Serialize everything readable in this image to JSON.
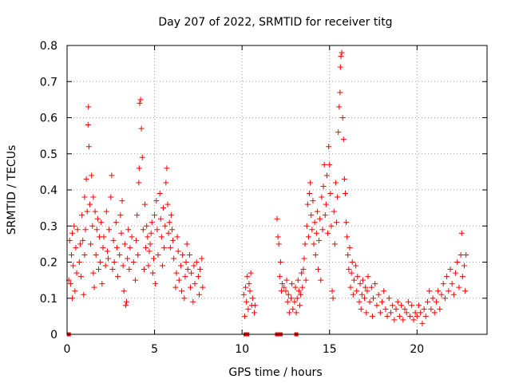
{
  "chart_data": {
    "type": "scatter",
    "title": "Day 207 of 2022, SRMTID for receiver titg",
    "xlabel": "GPS time / hours",
    "ylabel": "SRMTID / TECUs",
    "xlim": [
      0,
      24
    ],
    "ylim": [
      0,
      0.8
    ],
    "x_ticks": [
      0,
      5,
      10,
      15,
      20
    ],
    "y_ticks": [
      0,
      0.1,
      0.2,
      0.3,
      0.4,
      0.5,
      0.6,
      0.7,
      0.8
    ],
    "x_tick_labels": [
      "0",
      "5",
      "10",
      "15",
      "20"
    ],
    "y_tick_labels": [
      "0",
      "0.1",
      "0.2",
      "0.3",
      "0.4",
      "0.5",
      "0.6",
      "0.7",
      "0.8"
    ],
    "grid": true,
    "marker": "+",
    "color": "#ff0000",
    "zero_points_x": [
      0.1,
      10.2,
      10.3,
      12.0,
      12.1,
      12.2,
      13.1
    ],
    "points": [
      [
        0.1,
        0.15
      ],
      [
        0.15,
        0.26
      ],
      [
        0.2,
        0.14
      ],
      [
        0.25,
        0.22
      ],
      [
        0.3,
        0.1
      ],
      [
        0.3,
        0.28
      ],
      [
        0.35,
        0.19
      ],
      [
        0.4,
        0.3
      ],
      [
        0.45,
        0.12
      ],
      [
        0.5,
        0.24
      ],
      [
        0.55,
        0.17
      ],
      [
        0.6,
        0.29
      ],
      [
        0.7,
        0.2
      ],
      [
        0.75,
        0.25
      ],
      [
        0.8,
        0.16
      ],
      [
        0.85,
        0.33
      ],
      [
        0.9,
        0.26
      ],
      [
        0.95,
        0.11
      ],
      [
        1.0,
        0.38
      ],
      [
        1.0,
        0.22
      ],
      [
        1.05,
        0.29
      ],
      [
        1.1,
        0.43
      ],
      [
        1.15,
        0.34
      ],
      [
        1.2,
        0.58
      ],
      [
        1.22,
        0.63
      ],
      [
        1.25,
        0.52
      ],
      [
        1.3,
        0.36
      ],
      [
        1.35,
        0.25
      ],
      [
        1.4,
        0.44
      ],
      [
        1.45,
        0.3
      ],
      [
        1.5,
        0.17
      ],
      [
        1.5,
        0.38
      ],
      [
        1.55,
        0.13
      ],
      [
        1.6,
        0.34
      ],
      [
        1.65,
        0.22
      ],
      [
        1.7,
        0.29
      ],
      [
        1.75,
        0.32
      ],
      [
        1.8,
        0.18
      ],
      [
        1.85,
        0.27
      ],
      [
        1.9,
        0.2
      ],
      [
        1.95,
        0.31
      ],
      [
        2.0,
        0.14
      ],
      [
        2.05,
        0.24
      ],
      [
        2.1,
        0.27
      ],
      [
        2.2,
        0.19
      ],
      [
        2.25,
        0.34
      ],
      [
        2.3,
        0.23
      ],
      [
        2.35,
        0.21
      ],
      [
        2.4,
        0.29
      ],
      [
        2.5,
        0.38
      ],
      [
        2.55,
        0.44
      ],
      [
        2.6,
        0.18
      ],
      [
        2.65,
        0.26
      ],
      [
        2.7,
        0.2
      ],
      [
        2.8,
        0.31
      ],
      [
        2.85,
        0.24
      ],
      [
        2.9,
        0.16
      ],
      [
        3.0,
        0.22
      ],
      [
        3.05,
        0.33
      ],
      [
        3.1,
        0.28
      ],
      [
        3.15,
        0.37
      ],
      [
        3.2,
        0.19
      ],
      [
        3.25,
        0.12
      ],
      [
        3.3,
        0.25
      ],
      [
        3.35,
        0.08
      ],
      [
        3.4,
        0.09
      ],
      [
        3.45,
        0.21
      ],
      [
        3.5,
        0.29
      ],
      [
        3.55,
        0.18
      ],
      [
        3.6,
        0.24
      ],
      [
        3.7,
        0.27
      ],
      [
        3.8,
        0.2
      ],
      [
        3.9,
        0.15
      ],
      [
        3.95,
        0.26
      ],
      [
        4.0,
        0.33
      ],
      [
        4.05,
        0.22
      ],
      [
        4.1,
        0.42
      ],
      [
        4.12,
        0.46
      ],
      [
        4.15,
        0.64
      ],
      [
        4.2,
        0.65
      ],
      [
        4.25,
        0.57
      ],
      [
        4.3,
        0.49
      ],
      [
        4.35,
        0.29
      ],
      [
        4.4,
        0.18
      ],
      [
        4.45,
        0.36
      ],
      [
        4.5,
        0.24
      ],
      [
        4.55,
        0.3
      ],
      [
        4.6,
        0.27
      ],
      [
        4.65,
        0.19
      ],
      [
        4.7,
        0.23
      ],
      [
        4.75,
        0.25
      ],
      [
        4.8,
        0.28
      ],
      [
        4.85,
        0.31
      ],
      [
        4.9,
        0.17
      ],
      [
        4.95,
        0.21
      ],
      [
        5.0,
        0.33
      ],
      [
        5.05,
        0.14
      ],
      [
        5.1,
        0.37
      ],
      [
        5.15,
        0.29
      ],
      [
        5.2,
        0.22
      ],
      [
        5.3,
        0.39
      ],
      [
        5.35,
        0.32
      ],
      [
        5.4,
        0.27
      ],
      [
        5.45,
        0.19
      ],
      [
        5.5,
        0.35
      ],
      [
        5.55,
        0.24
      ],
      [
        5.6,
        0.3
      ],
      [
        5.65,
        0.42
      ],
      [
        5.7,
        0.46
      ],
      [
        5.75,
        0.36
      ],
      [
        5.8,
        0.28
      ],
      [
        5.85,
        0.31
      ],
      [
        5.9,
        0.24
      ],
      [
        5.95,
        0.33
      ],
      [
        6.0,
        0.29
      ],
      [
        6.05,
        0.26
      ],
      [
        6.1,
        0.21
      ],
      [
        6.2,
        0.13
      ],
      [
        6.25,
        0.17
      ],
      [
        6.3,
        0.27
      ],
      [
        6.35,
        0.23
      ],
      [
        6.4,
        0.15
      ],
      [
        6.5,
        0.19
      ],
      [
        6.55,
        0.12
      ],
      [
        6.6,
        0.22
      ],
      [
        6.7,
        0.1
      ],
      [
        6.75,
        0.16
      ],
      [
        6.8,
        0.2
      ],
      [
        6.85,
        0.25
      ],
      [
        6.9,
        0.18
      ],
      [
        7.0,
        0.22
      ],
      [
        7.05,
        0.13
      ],
      [
        7.1,
        0.17
      ],
      [
        7.2,
        0.09
      ],
      [
        7.25,
        0.19
      ],
      [
        7.3,
        0.14
      ],
      [
        7.4,
        0.2
      ],
      [
        7.5,
        0.16
      ],
      [
        7.55,
        0.11
      ],
      [
        7.6,
        0.18
      ],
      [
        7.7,
        0.21
      ],
      [
        7.75,
        0.13
      ],
      [
        10.1,
        0.11
      ],
      [
        10.15,
        0.05
      ],
      [
        10.2,
        0.13
      ],
      [
        10.25,
        0.09
      ],
      [
        10.3,
        0.16
      ],
      [
        10.35,
        0.07
      ],
      [
        10.4,
        0.14
      ],
      [
        10.45,
        0.12
      ],
      [
        10.5,
        0.17
      ],
      [
        10.55,
        0.08
      ],
      [
        10.6,
        0.1
      ],
      [
        10.7,
        0.06
      ],
      [
        10.75,
        0.08
      ],
      [
        12.0,
        0.32
      ],
      [
        12.05,
        0.27
      ],
      [
        12.1,
        0.25
      ],
      [
        12.15,
        0.16
      ],
      [
        12.2,
        0.2
      ],
      [
        12.25,
        0.12
      ],
      [
        12.3,
        0.14
      ],
      [
        12.4,
        0.13
      ],
      [
        12.5,
        0.12
      ],
      [
        12.55,
        0.15
      ],
      [
        12.6,
        0.09
      ],
      [
        12.65,
        0.11
      ],
      [
        12.7,
        0.06
      ],
      [
        12.8,
        0.1
      ],
      [
        12.85,
        0.14
      ],
      [
        12.9,
        0.07
      ],
      [
        13.0,
        0.09
      ],
      [
        13.05,
        0.13
      ],
      [
        13.1,
        0.06
      ],
      [
        13.15,
        0.1
      ],
      [
        13.2,
        0.15
      ],
      [
        13.25,
        0.12
      ],
      [
        13.3,
        0.08
      ],
      [
        13.35,
        0.11
      ],
      [
        13.4,
        0.17
      ],
      [
        13.45,
        0.13
      ],
      [
        13.5,
        0.18
      ],
      [
        13.55,
        0.21
      ],
      [
        13.6,
        0.25
      ],
      [
        13.65,
        0.15
      ],
      [
        13.7,
        0.3
      ],
      [
        13.75,
        0.36
      ],
      [
        13.8,
        0.27
      ],
      [
        13.85,
        0.39
      ],
      [
        13.9,
        0.42
      ],
      [
        13.95,
        0.33
      ],
      [
        14.0,
        0.29
      ],
      [
        14.05,
        0.37
      ],
      [
        14.1,
        0.25
      ],
      [
        14.15,
        0.31
      ],
      [
        14.2,
        0.22
      ],
      [
        14.25,
        0.28
      ],
      [
        14.3,
        0.34
      ],
      [
        14.35,
        0.18
      ],
      [
        14.4,
        0.26
      ],
      [
        14.45,
        0.32
      ],
      [
        14.5,
        0.15
      ],
      [
        14.55,
        0.38
      ],
      [
        14.6,
        0.29
      ],
      [
        14.65,
        0.41
      ],
      [
        14.7,
        0.47
      ],
      [
        14.75,
        0.33
      ],
      [
        14.8,
        0.36
      ],
      [
        14.85,
        0.44
      ],
      [
        14.9,
        0.28
      ],
      [
        14.95,
        0.52
      ],
      [
        15.0,
        0.47
      ],
      [
        15.05,
        0.39
      ],
      [
        15.1,
        0.3
      ],
      [
        15.15,
        0.12
      ],
      [
        15.2,
        0.1
      ],
      [
        15.25,
        0.34
      ],
      [
        15.3,
        0.25
      ],
      [
        15.35,
        0.42
      ],
      [
        15.4,
        0.31
      ],
      [
        15.45,
        0.38
      ],
      [
        15.5,
        0.56
      ],
      [
        15.55,
        0.63
      ],
      [
        15.6,
        0.67
      ],
      [
        15.62,
        0.74
      ],
      [
        15.65,
        0.77
      ],
      [
        15.7,
        0.78
      ],
      [
        15.75,
        0.6
      ],
      [
        15.8,
        0.54
      ],
      [
        15.85,
        0.43
      ],
      [
        15.9,
        0.39
      ],
      [
        15.95,
        0.31
      ],
      [
        16.0,
        0.27
      ],
      [
        16.05,
        0.22
      ],
      [
        16.1,
        0.18
      ],
      [
        16.15,
        0.24
      ],
      [
        16.2,
        0.13
      ],
      [
        16.25,
        0.17
      ],
      [
        16.3,
        0.2
      ],
      [
        16.35,
        0.11
      ],
      [
        16.4,
        0.15
      ],
      [
        16.5,
        0.19
      ],
      [
        16.55,
        0.12
      ],
      [
        16.6,
        0.16
      ],
      [
        16.7,
        0.09
      ],
      [
        16.75,
        0.14
      ],
      [
        16.8,
        0.07
      ],
      [
        16.85,
        0.11
      ],
      [
        16.9,
        0.15
      ],
      [
        17.0,
        0.1
      ],
      [
        17.05,
        0.13
      ],
      [
        17.1,
        0.06
      ],
      [
        17.15,
        0.12
      ],
      [
        17.2,
        0.16
      ],
      [
        17.3,
        0.09
      ],
      [
        17.4,
        0.13
      ],
      [
        17.45,
        0.05
      ],
      [
        17.5,
        0.1
      ],
      [
        17.6,
        0.14
      ],
      [
        17.7,
        0.08
      ],
      [
        17.8,
        0.11
      ],
      [
        17.9,
        0.06
      ],
      [
        18.0,
        0.09
      ],
      [
        18.1,
        0.12
      ],
      [
        18.2,
        0.07
      ],
      [
        18.3,
        0.05
      ],
      [
        18.4,
        0.1
      ],
      [
        18.5,
        0.06
      ],
      [
        18.6,
        0.08
      ],
      [
        18.7,
        0.04
      ],
      [
        18.8,
        0.07
      ],
      [
        18.9,
        0.09
      ],
      [
        19.0,
        0.05
      ],
      [
        19.1,
        0.08
      ],
      [
        19.2,
        0.04
      ],
      [
        19.3,
        0.07
      ],
      [
        19.4,
        0.06
      ],
      [
        19.5,
        0.09
      ],
      [
        19.6,
        0.05
      ],
      [
        19.7,
        0.08
      ],
      [
        19.8,
        0.04
      ],
      [
        19.9,
        0.06
      ],
      [
        20.0,
        0.05
      ],
      [
        20.1,
        0.08
      ],
      [
        20.2,
        0.06
      ],
      [
        20.3,
        0.03
      ],
      [
        20.4,
        0.07
      ],
      [
        20.5,
        0.05
      ],
      [
        20.6,
        0.09
      ],
      [
        20.7,
        0.12
      ],
      [
        20.8,
        0.07
      ],
      [
        20.9,
        0.1
      ],
      [
        21.0,
        0.06
      ],
      [
        21.1,
        0.09
      ],
      [
        21.2,
        0.12
      ],
      [
        21.3,
        0.07
      ],
      [
        21.4,
        0.11
      ],
      [
        21.5,
        0.14
      ],
      [
        21.6,
        0.1
      ],
      [
        21.7,
        0.16
      ],
      [
        21.8,
        0.12
      ],
      [
        21.9,
        0.18
      ],
      [
        22.0,
        0.14
      ],
      [
        22.1,
        0.11
      ],
      [
        22.2,
        0.17
      ],
      [
        22.3,
        0.2
      ],
      [
        22.4,
        0.13
      ],
      [
        22.5,
        0.22
      ],
      [
        22.55,
        0.28
      ],
      [
        22.6,
        0.16
      ],
      [
        22.7,
        0.19
      ],
      [
        22.75,
        0.12
      ],
      [
        22.8,
        0.22
      ]
    ]
  }
}
